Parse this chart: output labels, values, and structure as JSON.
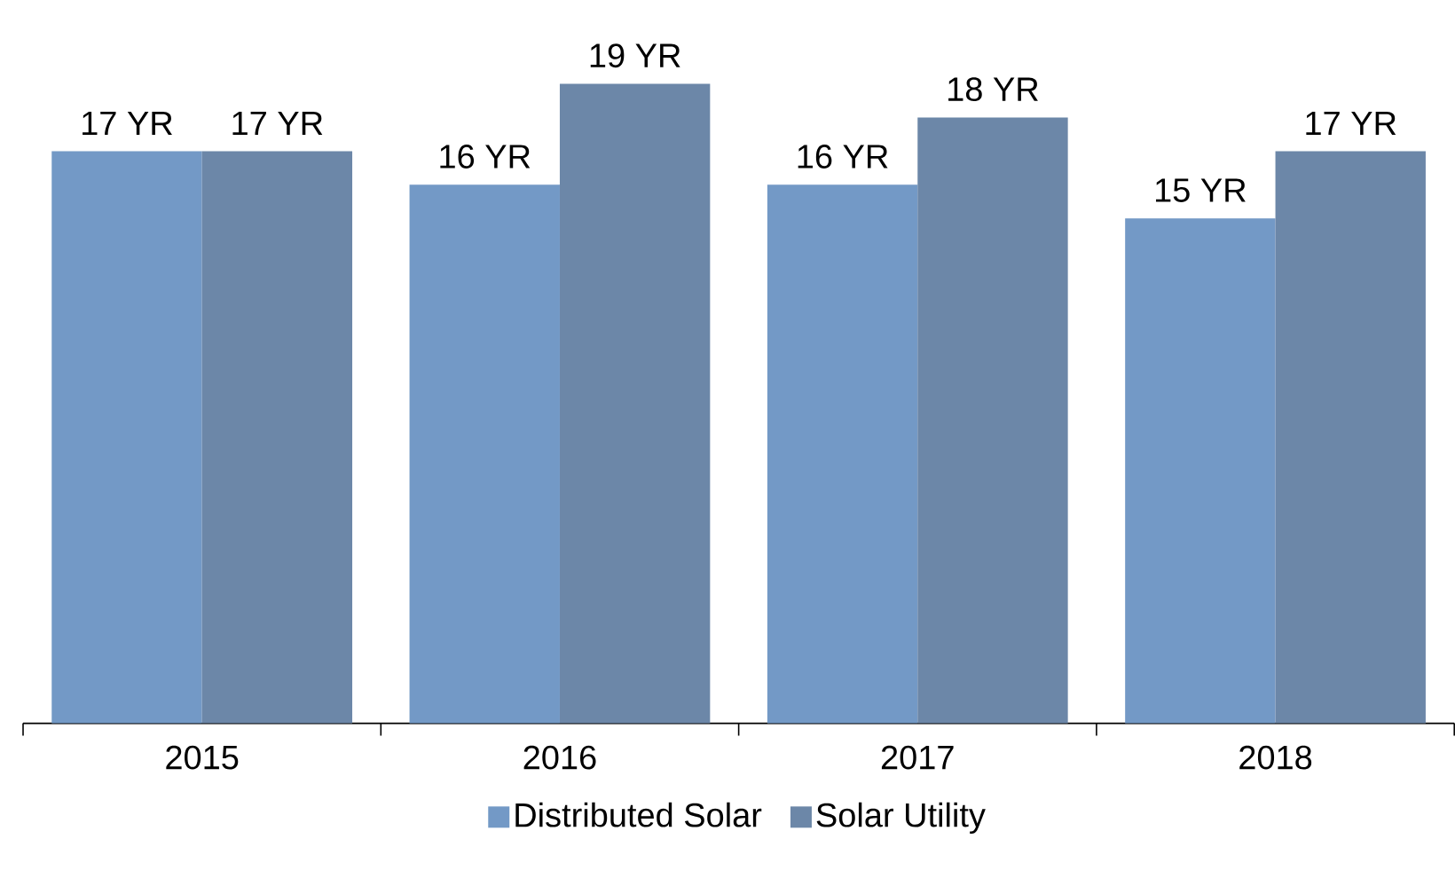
{
  "chart_data": {
    "type": "bar",
    "categories": [
      "2015",
      "2016",
      "2017",
      "2018"
    ],
    "series": [
      {
        "name": "Distributed Solar",
        "color": "#7399c6",
        "values": [
          17,
          16,
          16,
          15
        ],
        "value_labels": [
          "17 YR",
          "16 YR",
          "16 YR",
          "15 YR"
        ]
      },
      {
        "name": "Solar Utility",
        "color": "#6c87a8",
        "values": [
          17,
          19,
          18,
          17
        ],
        "value_labels": [
          "17 YR",
          "19 YR",
          "18 YR",
          "17 YR"
        ]
      }
    ],
    "tick_labels": "x",
    "grid": false,
    "legend": "bottom"
  }
}
